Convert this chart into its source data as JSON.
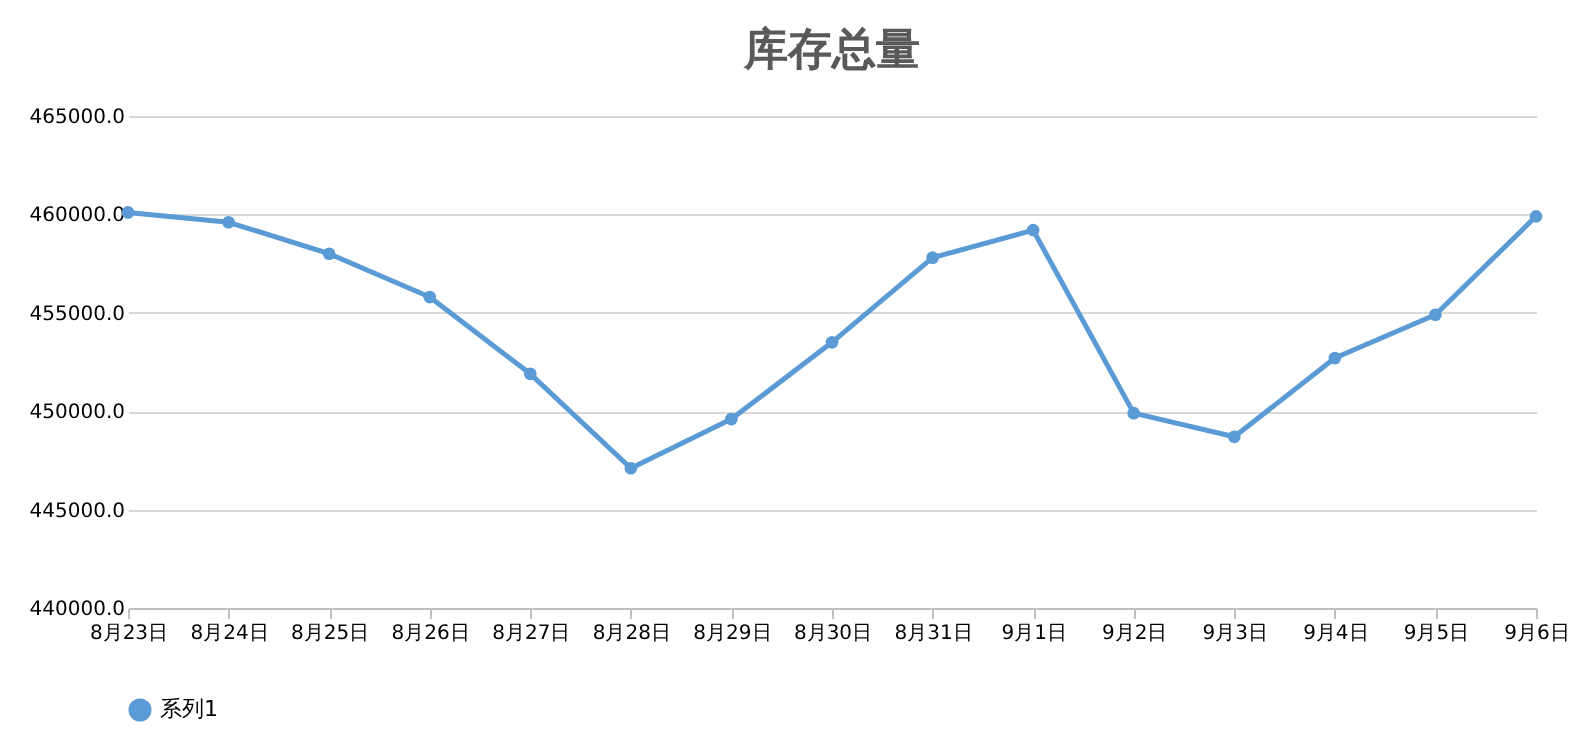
{
  "chart_data": {
    "type": "line",
    "title": "库存总量",
    "categories": [
      "8月23日",
      "8月24日",
      "8月25日",
      "8月26日",
      "8月27日",
      "8月28日",
      "8月29日",
      "8月30日",
      "8月31日",
      "9月1日",
      "9月2日",
      "9月3日",
      "9月4日",
      "9月5日",
      "9月6日"
    ],
    "series": [
      {
        "name": "系列1",
        "color": "#5b9bd5",
        "values": [
          460100,
          459600,
          458000,
          455800,
          451900,
          447100,
          449600,
          453500,
          457800,
          459200,
          449900,
          448700,
          452700,
          454900,
          459900
        ]
      }
    ],
    "ylim": [
      440000,
      465000
    ],
    "yticks": [
      {
        "value": 440000,
        "label": "440000.0"
      },
      {
        "value": 445000,
        "label": "445000.0"
      },
      {
        "value": 450000,
        "label": "450000.0"
      },
      {
        "value": 455000,
        "label": "455000.0"
      },
      {
        "value": 460000,
        "label": "460000.0"
      },
      {
        "value": 465000,
        "label": "465000.0"
      }
    ],
    "grid": "y",
    "legend": "bottom",
    "marker": "circle",
    "line_style": "solid"
  }
}
